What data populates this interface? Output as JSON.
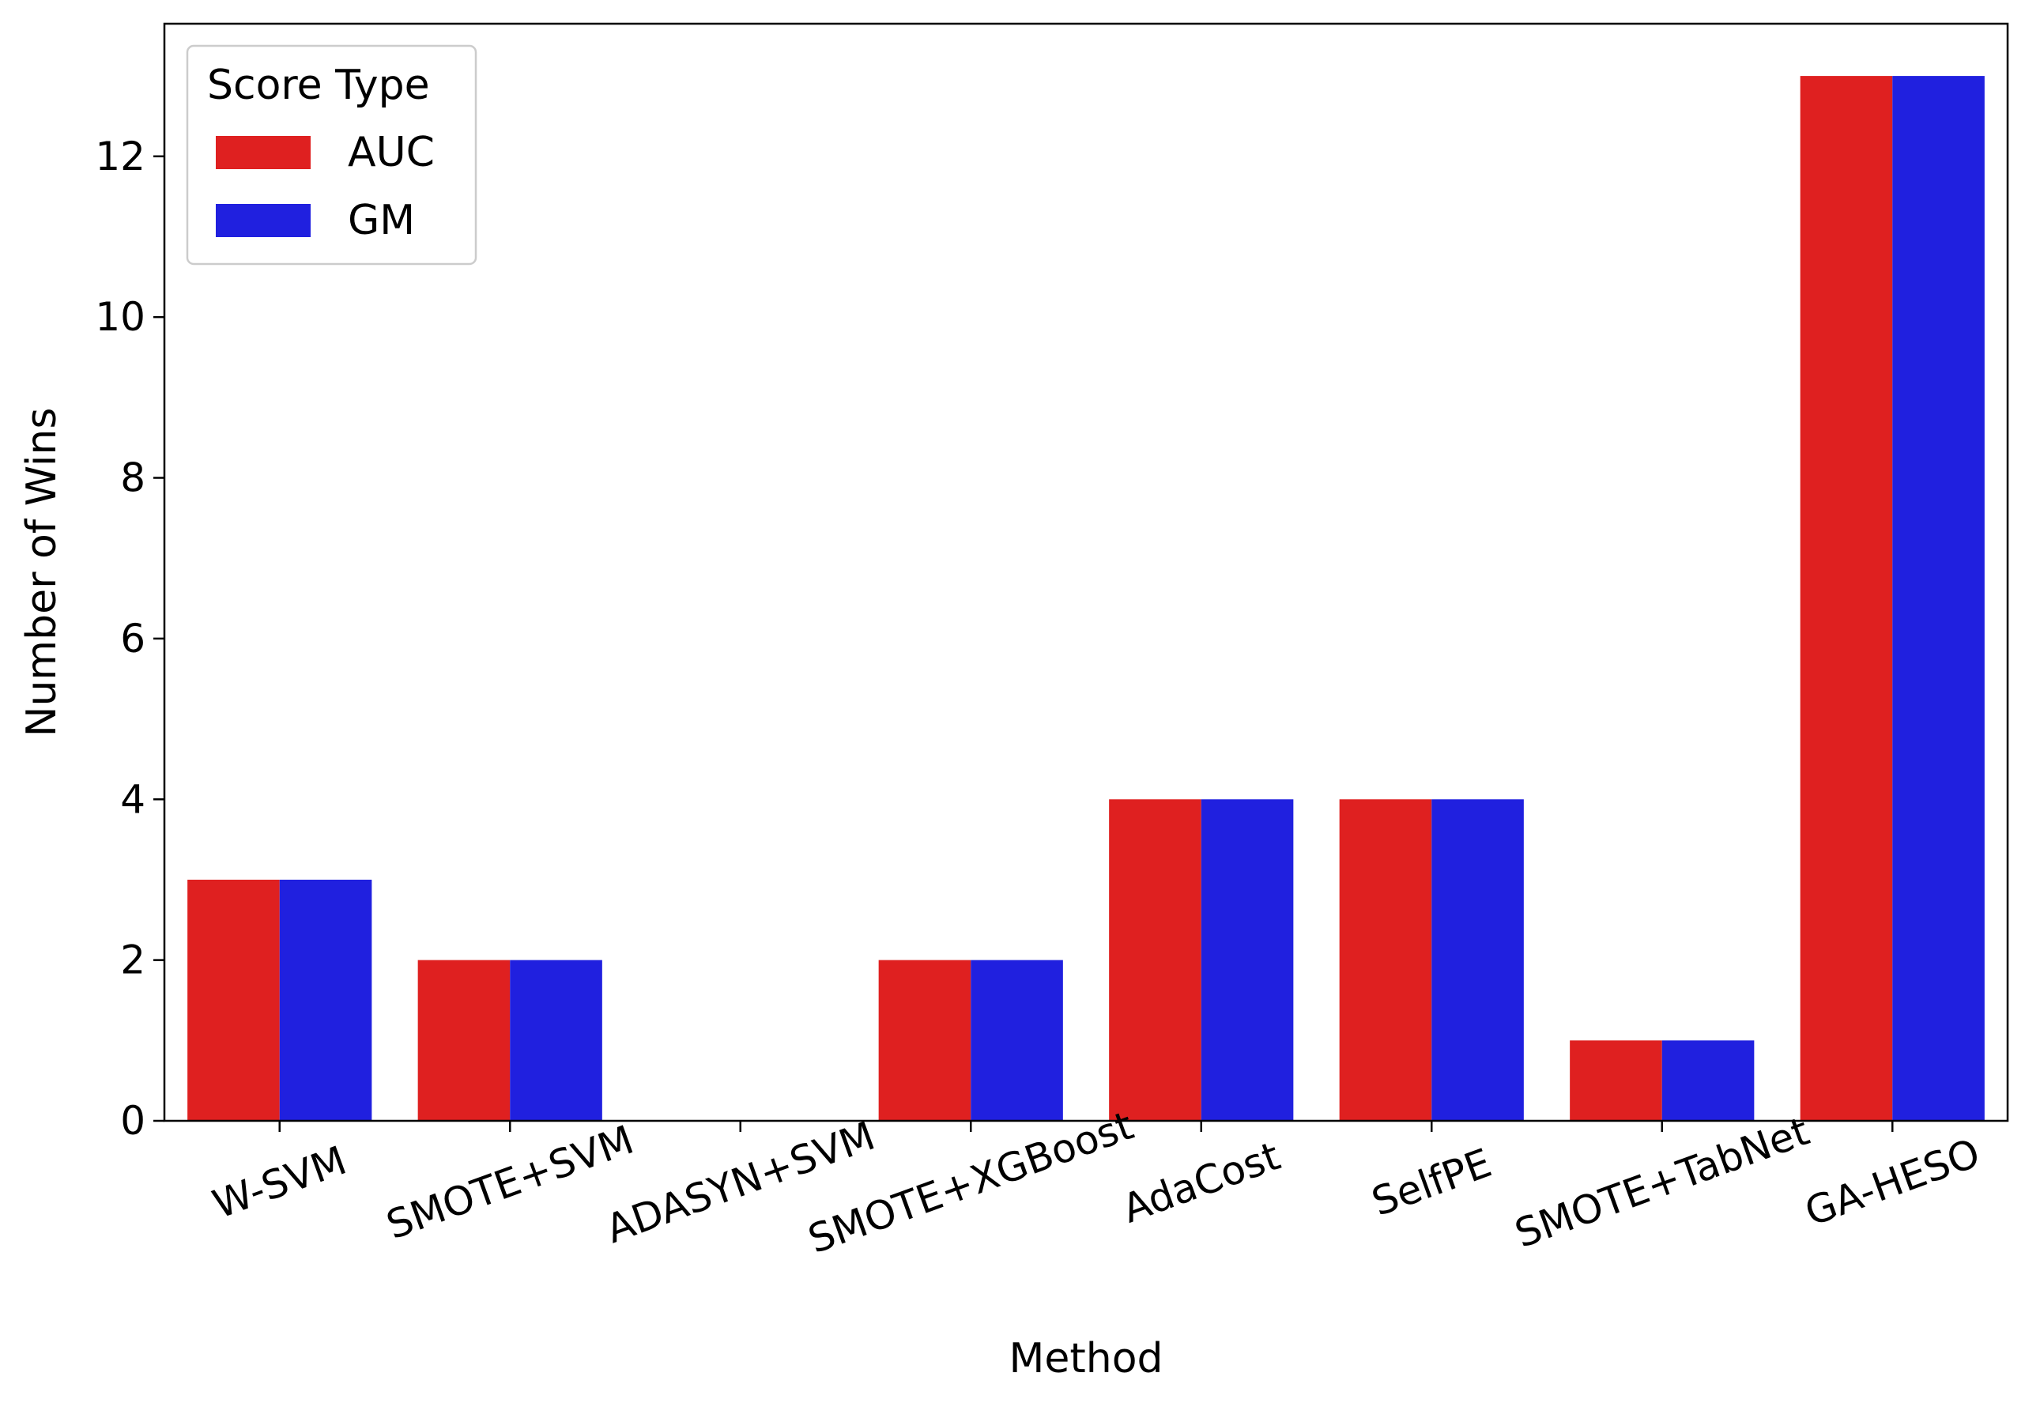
{
  "chart_data": {
    "type": "bar",
    "title": "",
    "xlabel": "Method",
    "ylabel": "Number of Wins",
    "categories": [
      "W-SVM",
      "SMOTE+SVM",
      "ADASYN+SVM",
      "SMOTE+XGBoost",
      "AdaCost",
      "SelfPE",
      "SMOTE+TabNet",
      "GA-HESO"
    ],
    "series": [
      {
        "name": "AUC",
        "color": "#df2020",
        "values": [
          3,
          2,
          0,
          2,
          4,
          4,
          1,
          13
        ]
      },
      {
        "name": "GM",
        "color": "#2020df",
        "values": [
          3,
          2,
          0,
          2,
          4,
          4,
          1,
          13
        ]
      }
    ],
    "ylim": [
      0,
      13.65
    ],
    "yticks": [
      0,
      2,
      4,
      6,
      8,
      10,
      12
    ],
    "xtick_rotation_deg": -20,
    "grid": false,
    "legend": {
      "title": "Score Type",
      "position": "top-left"
    }
  }
}
